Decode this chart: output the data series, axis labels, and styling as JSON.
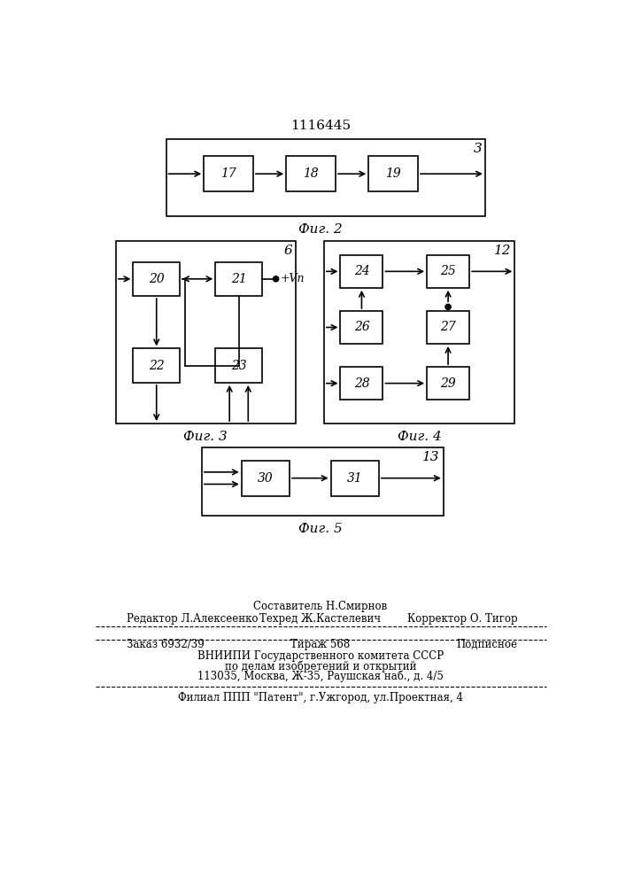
{
  "title": "1116445",
  "fig2_label": "3",
  "fig2_caption": "Фиг. 2",
  "fig3_label": "6",
  "fig3_caption": "Фиг. 3",
  "fig4_label": "12",
  "fig4_caption": "Фиг. 4",
  "fig5_label": "13",
  "fig5_caption": "Фиг. 5",
  "bg_color": "#ffffff",
  "line_color": "#000000",
  "text_color": "#000000",
  "footer_line1_center_top": "Составитель Н.Смирнов",
  "footer_line1_left": "Редактор Л.Алексеенко",
  "footer_line1_center": "Техред Ж.Кастелевич",
  "footer_line1_right": "Корректор О. Тигор",
  "footer_line2_left": "Заказ 6932/39",
  "footer_line2_center": "Тираж 568",
  "footer_line2_right": "Подписное",
  "footer_line3": "ВНИИПИ Государственного комитета СССР",
  "footer_line4": "по делам изобретений и открытий",
  "footer_line5": "113035, Москва, Ж-35, Раушская наб., д. 4/5",
  "footer_line6": "Филиал ППП \"Патент\", г.Ужгород, ул.Проектная, 4"
}
